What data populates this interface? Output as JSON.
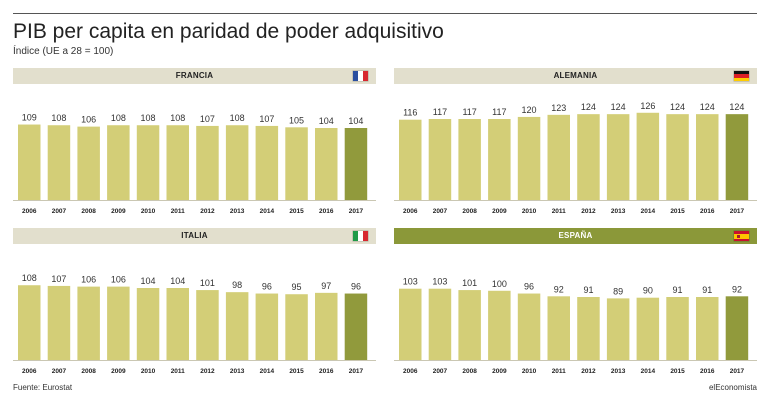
{
  "title": "PIB per capita en paridad de poder adquisitivo",
  "subtitle": "Índice (UE a 28 = 100)",
  "footer": {
    "source": "Fuente: Eurostat",
    "brand": "elEconomista"
  },
  "colors": {
    "bar": "#d3ce77",
    "bar_highlight": "#919a3c",
    "header_bg": "#e2dfcd",
    "header_bg_active": "#8b9839",
    "header_text": "#222222",
    "header_text_active": "#ffffff",
    "value_text": "#333333",
    "axis_text": "#222222"
  },
  "chart_data": [
    {
      "type": "bar",
      "title": "FRANCIA",
      "flag": "france-flag-icon",
      "categories": [
        "2006",
        "2007",
        "2008",
        "2009",
        "2010",
        "2011",
        "2012",
        "2013",
        "2014",
        "2015",
        "2016",
        "2017"
      ],
      "values": [
        109,
        108,
        106,
        108,
        108,
        108,
        107,
        108,
        107,
        105,
        104,
        104
      ],
      "highlight_category": "2017",
      "ylim": [
        0,
        130
      ],
      "xlabel": "",
      "ylabel": "",
      "grid": false
    },
    {
      "type": "bar",
      "title": "ALEMANIA",
      "flag": "germany-flag-icon",
      "categories": [
        "2006",
        "2007",
        "2008",
        "2009",
        "2010",
        "2011",
        "2012",
        "2013",
        "2014",
        "2015",
        "2016",
        "2017"
      ],
      "values": [
        116,
        117,
        117,
        117,
        120,
        123,
        124,
        124,
        126,
        124,
        124,
        124
      ],
      "highlight_category": "2017",
      "ylim": [
        0,
        130
      ],
      "xlabel": "",
      "ylabel": "",
      "grid": false
    },
    {
      "type": "bar",
      "title": "ITALIA",
      "flag": "italy-flag-icon",
      "categories": [
        "2006",
        "2007",
        "2008",
        "2009",
        "2010",
        "2011",
        "2012",
        "2013",
        "2014",
        "2015",
        "2016",
        "2017"
      ],
      "values": [
        108,
        107,
        106,
        106,
        104,
        104,
        101,
        98,
        96,
        95,
        97,
        96
      ],
      "highlight_category": "2017",
      "ylim": [
        0,
        130
      ],
      "xlabel": "",
      "ylabel": "",
      "grid": false
    },
    {
      "type": "bar",
      "title": "ESPAÑA",
      "flag": "spain-flag-icon",
      "categories": [
        "2006",
        "2007",
        "2008",
        "2009",
        "2010",
        "2011",
        "2012",
        "2013",
        "2014",
        "2015",
        "2016",
        "2017"
      ],
      "values": [
        103,
        103,
        101,
        100,
        96,
        92,
        91,
        89,
        90,
        91,
        91,
        92
      ],
      "highlight_category": "2017",
      "header_active": true,
      "ylim": [
        0,
        130
      ],
      "xlabel": "",
      "ylabel": "",
      "grid": false
    }
  ]
}
